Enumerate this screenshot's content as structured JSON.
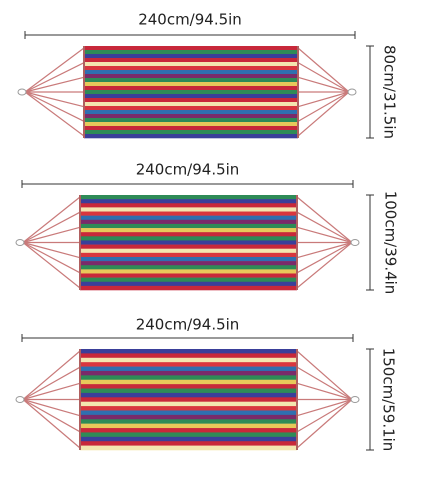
{
  "hammocks": [
    {
      "length": "240cm/94.5in",
      "width": "80cm/31.5in"
    },
    {
      "length": "240cm/94.5in",
      "width": "100cm/39.4in"
    },
    {
      "length": "240cm/94.5in",
      "width": "150cm/59.1in"
    }
  ]
}
